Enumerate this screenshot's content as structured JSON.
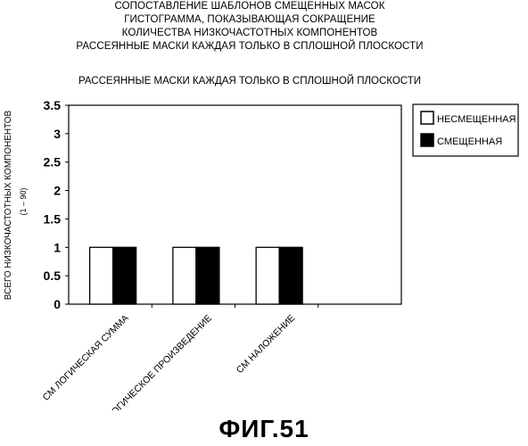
{
  "title_lines": [
    "СОПОСТАВЛЕНИЕ ШАБЛОНОВ СМЕЩЕННЫХ МАСОК",
    "ГИСТОГРАММА, ПОКАЗЫВАЮЩАЯ СОКРАЩЕНИЕ",
    "КОЛИЧЕСТВА НИЗКОЧАСТОТНЫХ КОМПОНЕНТОВ",
    "РАССЕЯННЫЕ МАСКИ КАЖДАЯ ТОЛЬКО В СПЛОШНОЙ ПЛОСКОСТИ"
  ],
  "subtitle": "РАССЕЯННЫЕ МАСКИ КАЖДАЯ ТОЛЬКО В СПЛОШНОЙ ПЛОСКОСТИ",
  "figure_caption": "ФИГ.51",
  "chart_data": {
    "type": "bar",
    "ylabel": "ВСЕГО НИЗКОЧАСТОТНЫХ КОМПОНЕНТОВ",
    "ylabel_sub": "(1 – 90)",
    "xlabel": "",
    "ylim": [
      0,
      3.5
    ],
    "yticks": [
      "0",
      "0.5",
      "1",
      "1.5",
      "2",
      "2.5",
      "3",
      "3.5"
    ],
    "categories": [
      "СМ ЛОГИЧЕСКАЯ СУММА",
      "СМ ЛОГИЧЕСКОЕ ПРОИЗВЕДЕНИЕ",
      "СМ НАЛОЖЕНИЕ",
      ""
    ],
    "series": [
      {
        "name": "НЕСМЕЩЕННАЯ",
        "color": "#ffffff",
        "values": [
          1,
          1,
          1,
          null
        ]
      },
      {
        "name": "СМЕЩЕННАЯ",
        "color": "#000000",
        "values": [
          1,
          1,
          1,
          null
        ]
      }
    ],
    "legend_position": "top-right",
    "grid": false
  }
}
